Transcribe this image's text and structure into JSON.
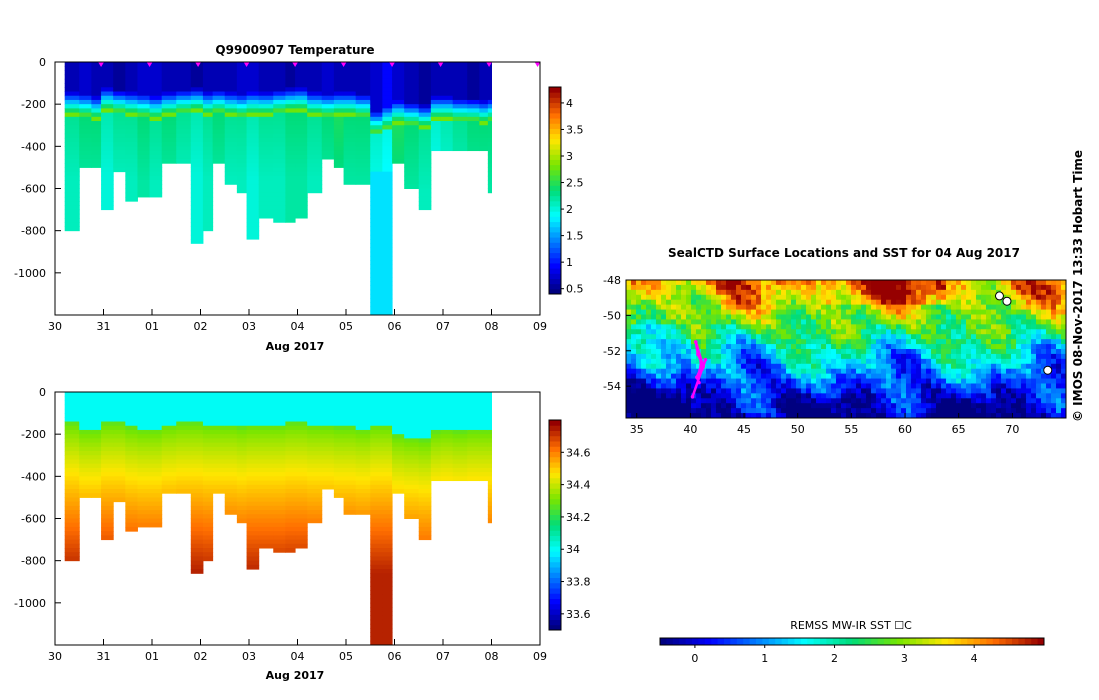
{
  "side_caption": "© IMOS 08-Nov-2017 13:33 Hobart Time",
  "chart_data": [
    {
      "type": "heatmap",
      "title": "Q9900907  Temperature",
      "xlabel": "Aug 2017",
      "ylabel": "",
      "x_ticks": [
        "30",
        "31",
        "01",
        "02",
        "03",
        "04",
        "05",
        "06",
        "07",
        "08",
        "09"
      ],
      "y_ticks": [
        0,
        -200,
        -400,
        -600,
        -800,
        -1000
      ],
      "ylim": [
        -1200,
        0
      ],
      "colorbar_ticks": [
        "0.5",
        "1",
        "1.5",
        "2",
        "2.5",
        "3",
        "3.5",
        "4"
      ],
      "colorbar_range": [
        0.4,
        4.3
      ],
      "colormap": "jet",
      "marker_color": "#ff00ff",
      "profile_days": [
        0.35,
        0.65,
        0.85,
        1.05,
        1.35,
        1.55,
        1.85,
        2.05,
        2.35,
        2.65,
        2.95,
        3.15,
        3.35,
        3.65,
        3.85,
        4.05,
        4.35,
        4.65,
        4.85,
        5.05,
        5.35,
        5.65,
        5.85,
        6.05,
        6.35,
        6.65,
        6.85,
        7.05,
        7.35,
        7.65,
        7.85,
        8.05,
        8.35,
        8.65,
        8.85,
        9.0
      ],
      "profile_depths": [
        800,
        500,
        500,
        700,
        520,
        660,
        640,
        630,
        480,
        480,
        850,
        800,
        480,
        580,
        620,
        840,
        740,
        760,
        760,
        730,
        610,
        450,
        500,
        570,
        570,
        1200,
        1200,
        480,
        590,
        700,
        420,
        420,
        420,
        420,
        420,
        620
      ],
      "surface_temps": [
        0.6,
        0.7,
        0.6,
        0.6,
        0.5,
        0.6,
        0.7,
        0.7,
        0.6,
        0.6,
        0.5,
        0.6,
        0.6,
        0.6,
        0.7,
        0.7,
        0.6,
        0.6,
        0.5,
        0.6,
        0.6,
        0.7,
        0.6,
        0.6,
        0.6,
        0.7,
        0.9,
        0.7,
        0.6,
        0.5,
        0.6,
        0.6,
        0.6,
        0.5,
        0.6,
        0.6
      ],
      "deep_temps": [
        2.1,
        2.2,
        2.2,
        2.0,
        2.1,
        2.1,
        2.2,
        2.1,
        2.2,
        2.1,
        2.0,
        2.1,
        2.2,
        2.1,
        2.1,
        2.0,
        2.1,
        2.1,
        2.2,
        2.2,
        2.1,
        2.2,
        2.3,
        2.2,
        2.2,
        1.9,
        1.8,
        2.3,
        2.2,
        2.1,
        1.9,
        2.0,
        2.1,
        2.2,
        2.2,
        2.2
      ],
      "thermocline_depths": [
        170,
        180,
        190,
        150,
        160,
        170,
        180,
        190,
        170,
        160,
        150,
        170,
        160,
        170,
        180,
        170,
        170,
        160,
        150,
        150,
        170,
        180,
        170,
        170,
        180,
        260,
        240,
        210,
        220,
        230,
        190,
        190,
        200,
        200,
        210,
        200
      ]
    },
    {
      "type": "heatmap",
      "title": "",
      "xlabel": "Aug 2017",
      "ylabel": "",
      "x_ticks": [
        "30",
        "31",
        "01",
        "02",
        "03",
        "04",
        "05",
        "06",
        "07",
        "08",
        "09"
      ],
      "y_ticks": [
        0,
        -200,
        -400,
        -600,
        -800,
        -1000
      ],
      "ylim": [
        -1200,
        0
      ],
      "colorbar_ticks": [
        "33.6",
        "33.8",
        "34",
        "34.2",
        "34.4",
        "34.6"
      ],
      "colorbar_range": [
        33.5,
        34.8
      ],
      "colormap": "jet",
      "surface_salinity": 34.0,
      "deep_salinity": 34.75,
      "halocline_depths": [
        160,
        190,
        190,
        160,
        160,
        180,
        190,
        190,
        170,
        160,
        160,
        170,
        170,
        170,
        180,
        170,
        170,
        170,
        160,
        160,
        170,
        170,
        180,
        180,
        190,
        170,
        170,
        220,
        230,
        240,
        200,
        190,
        200,
        190,
        190,
        190
      ]
    },
    {
      "type": "heatmap",
      "title": "SealCTD Surface Locations and SST for 04 Aug 2017",
      "xlabel": "",
      "ylabel": "",
      "x_ticks": [
        "35",
        "40",
        "45",
        "50",
        "55",
        "60",
        "65",
        "70"
      ],
      "y_ticks": [
        "-48",
        "-50",
        "-52",
        "-54"
      ],
      "xlim": [
        34,
        75
      ],
      "ylim": [
        -55.8,
        -48
      ],
      "colorbar_label": "REMSS MW-IR SST ☐C",
      "colorbar_ticks": [
        "0",
        "1",
        "2",
        "3",
        "4"
      ],
      "colorbar_range": [
        -0.5,
        5.0
      ],
      "colormap": "jet",
      "track_color": "#ff00ff",
      "track_points": [
        [
          40.8,
          -53.8
        ],
        [
          40.6,
          -53.5
        ],
        [
          40.9,
          -53.1
        ],
        [
          41.0,
          -52.6
        ],
        [
          40.7,
          -52.2
        ],
        [
          40.5,
          -51.5
        ],
        [
          41.2,
          -52.9
        ],
        [
          41.4,
          -52.5
        ],
        [
          40.2,
          -54.6
        ]
      ],
      "land_points": [
        [
          69.5,
          -49.2
        ],
        [
          68.8,
          -48.9
        ],
        [
          73.3,
          -53.1
        ]
      ]
    }
  ]
}
